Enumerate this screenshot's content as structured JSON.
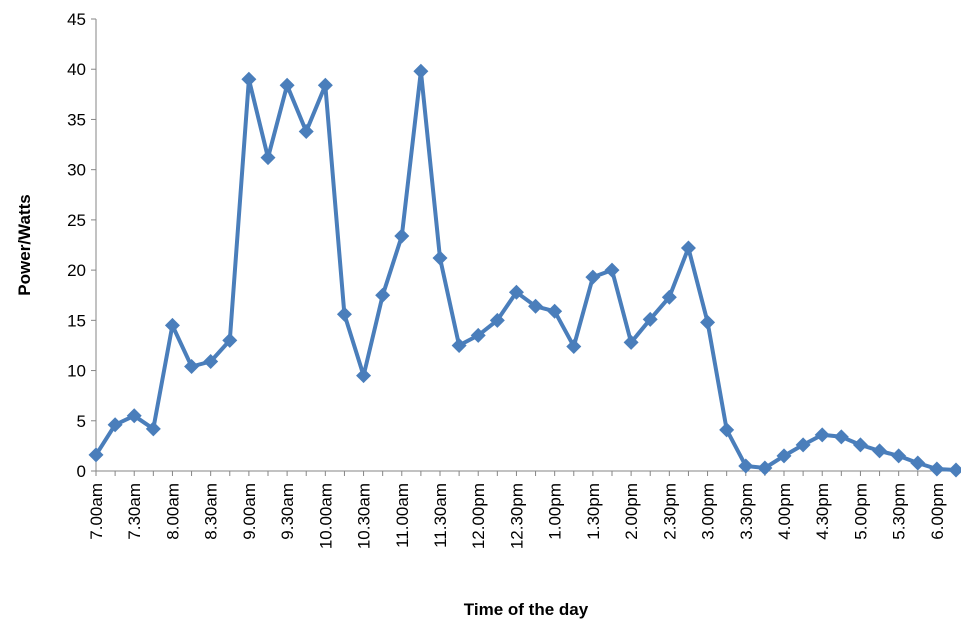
{
  "chart_data": {
    "type": "line",
    "title": "",
    "xlabel": "Time of the day",
    "ylabel": "Power/Watts",
    "ylim": [
      0,
      45
    ],
    "yticks": [
      0,
      5,
      10,
      15,
      20,
      25,
      30,
      35,
      40,
      45
    ],
    "grid": false,
    "legend": "none",
    "colors": {
      "series": "#4a7ebb",
      "axis": "#868686"
    },
    "x_tick_labels": [
      "7.00am",
      "7.30am",
      "8.00am",
      "8.30am",
      "9.00am",
      "9.30am",
      "10.00am",
      "10.30am",
      "11.00am",
      "11.30am",
      "12.00pm",
      "12.30pm",
      "1.00pm",
      "1.30pm",
      "2.00pm",
      "2.30pm",
      "3.00pm",
      "3.30pm",
      "4.00pm",
      "4.30pm",
      "5.00pm",
      "5.30pm",
      "6.00pm"
    ],
    "x": [
      "7.00am",
      "7.15am",
      "7.30am",
      "7.45am",
      "8.00am",
      "8.15am",
      "8.30am",
      "8.45am",
      "9.00am",
      "9.15am",
      "9.30am",
      "9.45am",
      "10.00am",
      "10.15am",
      "10.30am",
      "10.45am",
      "11.00am",
      "11.15am",
      "11.30am",
      "11.45am",
      "12.00pm",
      "12.15pm",
      "12.30pm",
      "12.45pm",
      "1.00pm",
      "1.15pm",
      "1.30pm",
      "1.45pm",
      "2.00pm",
      "2.15pm",
      "2.30pm",
      "2.45pm",
      "3.00pm",
      "3.15pm",
      "3.30pm",
      "3.45pm",
      "4.00pm",
      "4.15pm",
      "4.30pm",
      "4.45pm",
      "5.00pm",
      "5.15pm",
      "5.30pm",
      "5.45pm",
      "6.00pm",
      "6.15pm"
    ],
    "series": [
      {
        "values": [
          1.6,
          4.6,
          5.5,
          4.2,
          14.5,
          10.4,
          10.9,
          13.0,
          39.0,
          31.2,
          38.4,
          33.8,
          38.4,
          15.6,
          9.5,
          17.5,
          23.4,
          39.8,
          21.2,
          12.5,
          13.5,
          15.0,
          17.8,
          16.4,
          15.9,
          12.4,
          19.3,
          20.0,
          12.8,
          15.1,
          17.3,
          22.2,
          14.8,
          4.1,
          0.5,
          0.3,
          1.5,
          2.6,
          3.6,
          3.4,
          2.6,
          2.0,
          1.5,
          0.8,
          0.2,
          0.1
        ]
      }
    ]
  }
}
